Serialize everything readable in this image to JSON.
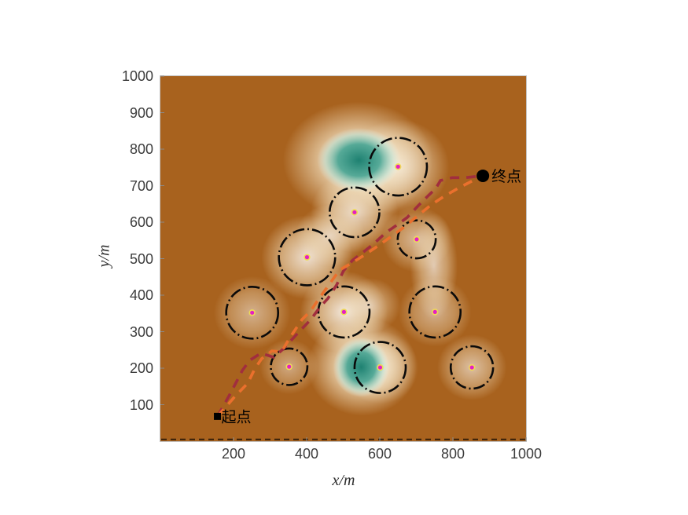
{
  "axes": {
    "xlabel": "x/m",
    "ylabel": "y/m",
    "x_ticks": [
      "200",
      "400",
      "600",
      "800",
      "1000"
    ],
    "y_ticks": [
      "100",
      "200",
      "300",
      "400",
      "500",
      "600",
      "700",
      "800",
      "900",
      "1000"
    ],
    "xlim": [
      0,
      1000
    ],
    "ylim": [
      0,
      1000
    ]
  },
  "colors": {
    "field_base": "#A8621E",
    "field_highlight": "#FDF3D8",
    "field_valley_teal": "#1E8171",
    "obstacle_stroke": "#0a0a0a",
    "obstacle_center_fill": "#E51FC4",
    "obstacle_center_ring": "#EEDB55",
    "path_maroon": "#A12E3E",
    "path_orange": "#EA702D",
    "marker_black": "#000000",
    "plot_border": "#c2c2c2",
    "tick_mark": "#8a8a8a",
    "baseline_dash": "#1e1206"
  },
  "chart_data": {
    "type": "scatter",
    "title": "",
    "xlabel": "x/m",
    "ylabel": "y/m",
    "xlim": [
      0,
      1000
    ],
    "ylim": [
      0,
      1000
    ],
    "grid": false,
    "start": {
      "x": 156,
      "y": 68,
      "label": "起点",
      "marker": "filled-square"
    },
    "end": {
      "x": 882,
      "y": 727,
      "label": "终点",
      "marker": "filled-circle"
    },
    "obstacles": [
      {
        "x": 650,
        "y": 752,
        "r": 79
      },
      {
        "x": 531,
        "y": 627,
        "r": 68
      },
      {
        "x": 701,
        "y": 553,
        "r": 52
      },
      {
        "x": 401,
        "y": 504,
        "r": 77
      },
      {
        "x": 251,
        "y": 352,
        "r": 71
      },
      {
        "x": 502,
        "y": 354,
        "r": 70
      },
      {
        "x": 751,
        "y": 354,
        "r": 70
      },
      {
        "x": 352,
        "y": 204,
        "r": 50
      },
      {
        "x": 601,
        "y": 202,
        "r": 70
      },
      {
        "x": 852,
        "y": 202,
        "r": 58
      }
    ],
    "paths": [
      {
        "name": "path-maroon",
        "color": "#A12E3E",
        "style": "dashed",
        "points": [
          [
            156,
            68
          ],
          [
            187,
            123
          ],
          [
            206,
            159
          ],
          [
            224,
            194
          ],
          [
            245,
            222
          ],
          [
            275,
            241
          ],
          [
            310,
            230
          ],
          [
            335,
            252
          ],
          [
            361,
            280
          ],
          [
            387,
            308
          ],
          [
            411,
            333
          ],
          [
            437,
            368
          ],
          [
            458,
            391
          ],
          [
            482,
            428
          ],
          [
            501,
            467
          ],
          [
            525,
            495
          ],
          [
            555,
            518
          ],
          [
            585,
            542
          ],
          [
            615,
            570
          ],
          [
            645,
            591
          ],
          [
            675,
            613
          ],
          [
            705,
            645
          ],
          [
            731,
            671
          ],
          [
            753,
            692
          ],
          [
            766,
            714
          ],
          [
            798,
            722
          ],
          [
            834,
            722
          ],
          [
            880,
            727
          ]
        ]
      },
      {
        "name": "path-orange",
        "color": "#EA702D",
        "style": "dashed",
        "points": [
          [
            156,
            68
          ],
          [
            206,
            125
          ],
          [
            239,
            159
          ],
          [
            258,
            198
          ],
          [
            277,
            226
          ],
          [
            305,
            247
          ],
          [
            331,
            245
          ],
          [
            357,
            288
          ],
          [
            387,
            333
          ],
          [
            411,
            357
          ],
          [
            439,
            398
          ],
          [
            465,
            434
          ],
          [
            490,
            469
          ],
          [
            523,
            488
          ],
          [
            555,
            508
          ],
          [
            589,
            531
          ],
          [
            626,
            557
          ],
          [
            662,
            583
          ],
          [
            701,
            615
          ],
          [
            740,
            647
          ],
          [
            776,
            671
          ],
          [
            813,
            692
          ],
          [
            847,
            710
          ],
          [
            880,
            727
          ]
        ]
      }
    ],
    "field": {
      "highlights": [
        [
          650,
          752,
          140,
          130,
          0.75
        ],
        [
          531,
          627,
          120,
          110,
          0.75
        ],
        [
          701,
          553,
          95,
          90,
          0.55
        ],
        [
          401,
          504,
          125,
          115,
          0.8
        ],
        [
          251,
          352,
          105,
          100,
          0.5
        ],
        [
          502,
          354,
          120,
          112,
          0.85
        ],
        [
          751,
          354,
          100,
          95,
          0.5
        ],
        [
          352,
          204,
          80,
          75,
          0.45
        ],
        [
          601,
          202,
          105,
          100,
          0.6
        ],
        [
          852,
          202,
          95,
          90,
          0.6
        ],
        [
          465,
          563,
          95,
          85,
          0.55
        ],
        [
          748,
          480,
          65,
          145,
          0.65
        ],
        [
          572,
          372,
          85,
          75,
          0.5
        ]
      ],
      "valleys": [
        {
          "halo": [
            540,
            770,
            205,
            160
          ],
          "core": [
            543,
            770,
            115,
            88
          ]
        },
        {
          "halo": [
            552,
            205,
            150,
            135
          ],
          "core": [
            549,
            203,
            77,
            82
          ]
        }
      ],
      "baseline_dash_y": 5
    }
  }
}
